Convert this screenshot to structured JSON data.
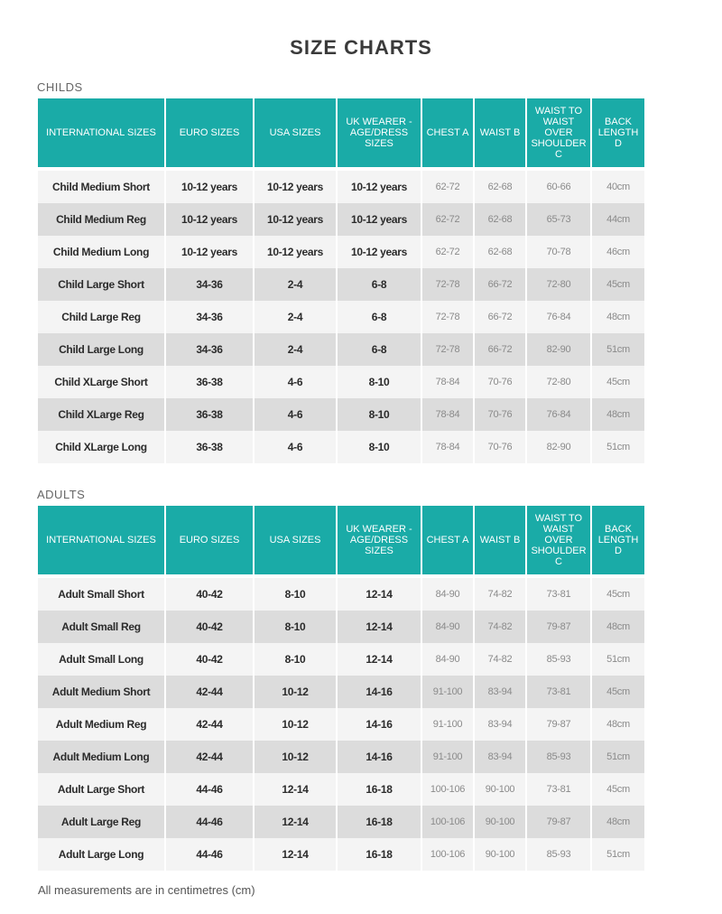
{
  "page": {
    "title": "SIZE CHARTS",
    "footnote": "All measurements are in centimetres (cm)"
  },
  "headers": [
    "INTERNATIONAL SIZES",
    "EURO SIZES",
    "USA SIZES",
    "UK WEARER - AGE/DRESS SIZES",
    "CHEST A",
    "WAIST B",
    "WAIST TO WAIST OVER SHOULDER C",
    "BACK LENGTH D"
  ],
  "childs": {
    "title": "CHILDS",
    "rows": [
      [
        "Child Medium Short",
        "10-12 years",
        "10-12 years",
        "10-12 years",
        "62-72",
        "62-68",
        "60-66",
        "40cm"
      ],
      [
        "Child Medium Reg",
        "10-12 years",
        "10-12 years",
        "10-12 years",
        "62-72",
        "62-68",
        "65-73",
        "44cm"
      ],
      [
        "Child Medium Long",
        "10-12 years",
        "10-12 years",
        "10-12 years",
        "62-72",
        "62-68",
        "70-78",
        "46cm"
      ],
      [
        "Child Large Short",
        "34-36",
        "2-4",
        "6-8",
        "72-78",
        "66-72",
        "72-80",
        "45cm"
      ],
      [
        "Child Large Reg",
        "34-36",
        "2-4",
        "6-8",
        "72-78",
        "66-72",
        "76-84",
        "48cm"
      ],
      [
        "Child Large Long",
        "34-36",
        "2-4",
        "6-8",
        "72-78",
        "66-72",
        "82-90",
        "51cm"
      ],
      [
        "Child XLarge Short",
        "36-38",
        "4-6",
        "8-10",
        "78-84",
        "70-76",
        "72-80",
        "45cm"
      ],
      [
        "Child XLarge Reg",
        "36-38",
        "4-6",
        "8-10",
        "78-84",
        "70-76",
        "76-84",
        "48cm"
      ],
      [
        "Child XLarge Long",
        "36-38",
        "4-6",
        "8-10",
        "78-84",
        "70-76",
        "82-90",
        "51cm"
      ]
    ]
  },
  "adults": {
    "title": "ADULTS",
    "rows": [
      [
        "Adult Small Short",
        "40-42",
        "8-10",
        "12-14",
        "84-90",
        "74-82",
        "73-81",
        "45cm"
      ],
      [
        "Adult Small Reg",
        "40-42",
        "8-10",
        "12-14",
        "84-90",
        "74-82",
        "79-87",
        "48cm"
      ],
      [
        "Adult Small Long",
        "40-42",
        "8-10",
        "12-14",
        "84-90",
        "74-82",
        "85-93",
        "51cm"
      ],
      [
        "Adult Medium Short",
        "42-44",
        "10-12",
        "14-16",
        "91-100",
        "83-94",
        "73-81",
        "45cm"
      ],
      [
        "Adult Medium Reg",
        "42-44",
        "10-12",
        "14-16",
        "91-100",
        "83-94",
        "79-87",
        "48cm"
      ],
      [
        "Adult Medium Long",
        "42-44",
        "10-12",
        "14-16",
        "91-100",
        "83-94",
        "85-93",
        "51cm"
      ],
      [
        "Adult Large Short",
        "44-46",
        "12-14",
        "16-18",
        "100-106",
        "90-100",
        "73-81",
        "45cm"
      ],
      [
        "Adult Large Reg",
        "44-46",
        "12-14",
        "16-18",
        "100-106",
        "90-100",
        "79-87",
        "48cm"
      ],
      [
        "Adult Large Long",
        "44-46",
        "12-14",
        "16-18",
        "100-106",
        "90-100",
        "85-93",
        "51cm"
      ]
    ]
  }
}
